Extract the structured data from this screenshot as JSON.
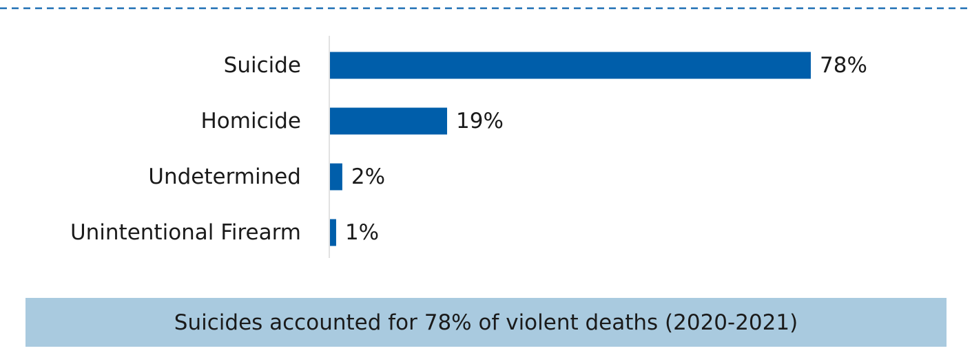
{
  "theme": {
    "bar_color": "#005eaa",
    "axis_color": "#d9d9d9",
    "divider_color": "#1f6fb4",
    "caption_background": "#a9cadf",
    "text_color": "#1a1a1a"
  },
  "chart_data": {
    "type": "bar",
    "orientation": "horizontal",
    "categories": [
      "Suicide",
      "Homicide",
      "Undetermined",
      "Unintentional Firearm"
    ],
    "values": [
      78,
      19,
      2,
      1
    ],
    "data_labels": [
      "78%",
      "19%",
      "2%",
      "1%"
    ],
    "unit": "%",
    "title": "",
    "xlabel": "",
    "ylabel": "",
    "xlim": [
      0,
      100
    ],
    "grid": false,
    "legend": "none"
  },
  "caption": {
    "text": "Suicides accounted for 78% of violent deaths (2020-2021)"
  }
}
